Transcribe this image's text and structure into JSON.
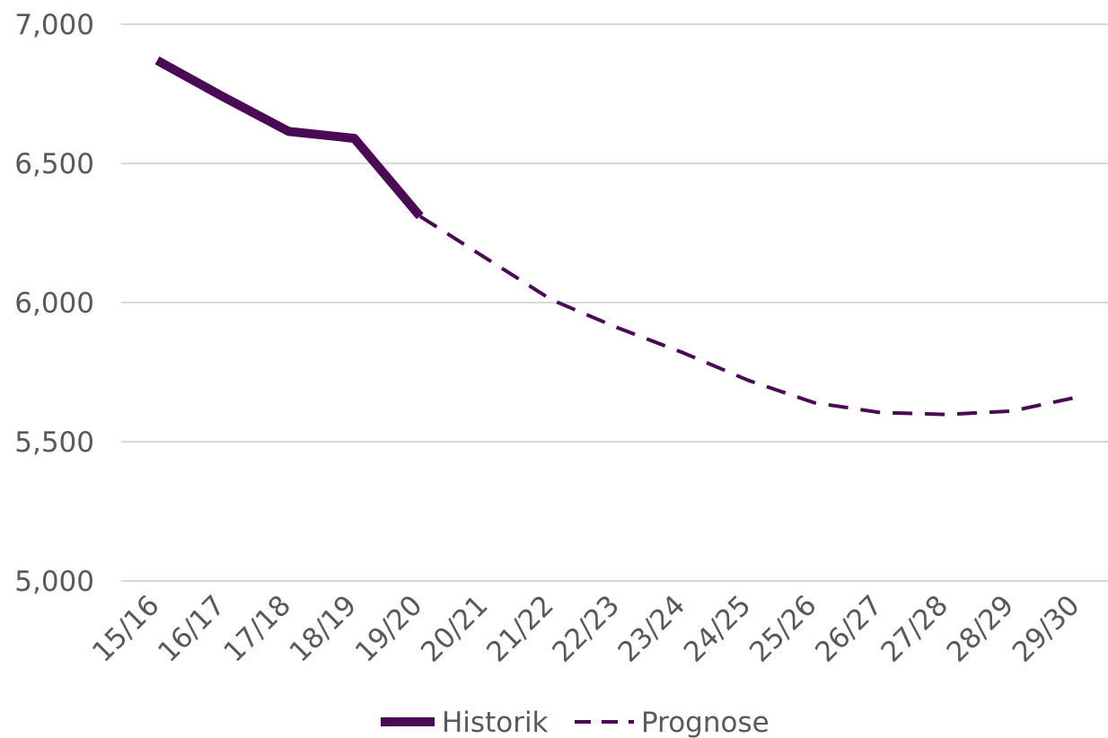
{
  "chart_data": {
    "type": "line",
    "title": "",
    "xlabel": "",
    "ylabel": "",
    "categories": [
      "15/16",
      "16/17",
      "17/18",
      "18/19",
      "19/20",
      "20/21",
      "21/22",
      "22/23",
      "23/24",
      "24/25",
      "25/26",
      "26/27",
      "27/28",
      "28/29",
      "29/30"
    ],
    "ylim": [
      5000,
      7000
    ],
    "yticks": [
      "5,000",
      "5,500",
      "6,000",
      "6,500",
      "7,000"
    ],
    "grid": true,
    "legend_position": "bottom",
    "series": [
      {
        "name": "Historik",
        "style": "solid",
        "color": "#4b0a55",
        "values": [
          6870,
          6740,
          6615,
          6590,
          6310,
          null,
          null,
          null,
          null,
          null,
          null,
          null,
          null,
          null,
          null
        ]
      },
      {
        "name": "Prognose",
        "style": "dashed",
        "color": "#4b0a55",
        "values": [
          null,
          null,
          null,
          null,
          6310,
          6160,
          6010,
          5910,
          5820,
          5720,
          5640,
          5605,
          5598,
          5610,
          5660
        ]
      }
    ]
  }
}
